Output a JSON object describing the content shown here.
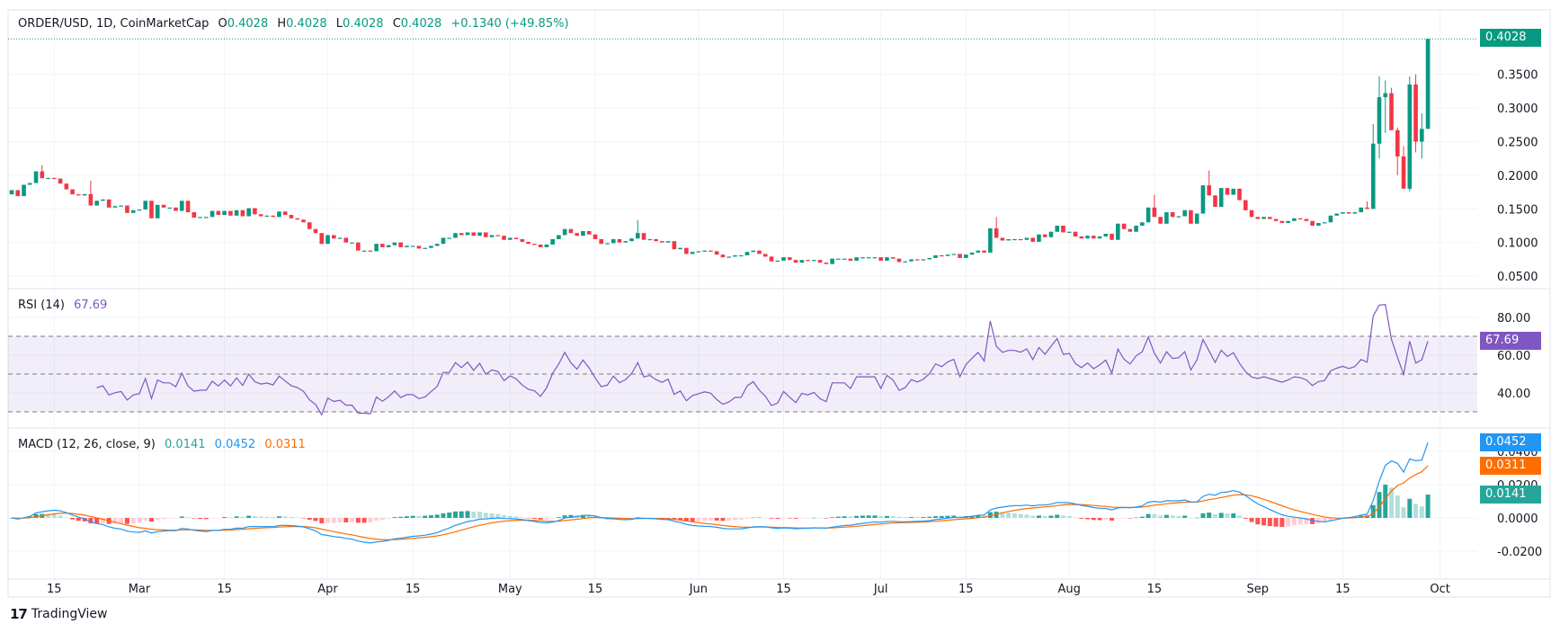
{
  "header": {
    "symbol": "ORDER/USD, 1D, CoinMarketCap",
    "o_label": "O",
    "o": "0.4028",
    "h_label": "H",
    "h": "0.4028",
    "l_label": "L",
    "l": "0.4028",
    "c_label": "C",
    "c": "0.4028",
    "change": "+0.1340 (+49.85%)"
  },
  "colors": {
    "up": "#089981",
    "down": "#F23645",
    "rsi": "#7E57C2",
    "macd": "#2196F3",
    "signal": "#FF6D00",
    "hist_up_strong": "#26A69A",
    "hist_up_weak": "#B2DFDB",
    "hist_down_strong": "#FF5252",
    "hist_down_weak": "#FFCDD2",
    "grid": "#F0F3FA",
    "border": "#E0E3EB"
  },
  "chart_data": [
    {
      "type": "candlestick",
      "title": "ORDER/USD, 1D, CoinMarketCap",
      "first_open": 0.1716,
      "closes": [
        0.1778,
        0.169,
        0.1858,
        0.1884,
        0.2058,
        0.1956,
        0.196,
        0.195,
        0.1876,
        0.179,
        0.1716,
        0.17,
        0.172,
        0.155,
        0.162,
        0.164,
        0.152,
        0.154,
        0.155,
        0.144,
        0.148,
        0.149,
        0.162,
        0.136,
        0.156,
        0.152,
        0.152,
        0.147,
        0.162,
        0.145,
        0.137,
        0.138,
        0.138,
        0.147,
        0.141,
        0.147,
        0.14,
        0.148,
        0.139,
        0.151,
        0.142,
        0.139,
        0.14,
        0.138,
        0.146,
        0.141,
        0.136,
        0.134,
        0.13,
        0.12,
        0.114,
        0.098,
        0.111,
        0.106,
        0.107,
        0.1,
        0.1,
        0.088,
        0.088,
        0.087,
        0.098,
        0.093,
        0.096,
        0.1,
        0.093,
        0.095,
        0.095,
        0.091,
        0.092,
        0.095,
        0.098,
        0.107,
        0.107,
        0.114,
        0.111,
        0.115,
        0.11,
        0.115,
        0.108,
        0.111,
        0.11,
        0.104,
        0.107,
        0.105,
        0.101,
        0.098,
        0.097,
        0.093,
        0.097,
        0.105,
        0.111,
        0.12,
        0.114,
        0.11,
        0.117,
        0.112,
        0.105,
        0.098,
        0.099,
        0.105,
        0.1,
        0.102,
        0.106,
        0.114,
        0.104,
        0.105,
        0.102,
        0.1,
        0.102,
        0.09,
        0.092,
        0.083,
        0.086,
        0.087,
        0.088,
        0.087,
        0.082,
        0.078,
        0.079,
        0.081,
        0.081,
        0.086,
        0.088,
        0.083,
        0.079,
        0.072,
        0.073,
        0.078,
        0.074,
        0.07,
        0.074,
        0.073,
        0.074,
        0.07,
        0.068,
        0.076,
        0.076,
        0.076,
        0.073,
        0.078,
        0.078,
        0.078,
        0.078,
        0.073,
        0.078,
        0.076,
        0.071,
        0.072,
        0.075,
        0.074,
        0.075,
        0.077,
        0.081,
        0.08,
        0.082,
        0.083,
        0.077,
        0.082,
        0.085,
        0.088,
        0.085,
        0.121,
        0.107,
        0.103,
        0.105,
        0.105,
        0.104,
        0.107,
        0.101,
        0.112,
        0.108,
        0.116,
        0.125,
        0.115,
        0.116,
        0.109,
        0.106,
        0.11,
        0.106,
        0.109,
        0.113,
        0.104,
        0.128,
        0.12,
        0.116,
        0.125,
        0.13,
        0.152,
        0.138,
        0.128,
        0.145,
        0.138,
        0.139,
        0.148,
        0.128,
        0.143,
        0.185,
        0.17,
        0.153,
        0.181,
        0.171,
        0.18,
        0.163,
        0.148,
        0.138,
        0.135,
        0.138,
        0.135,
        0.132,
        0.129,
        0.132,
        0.136,
        0.135,
        0.132,
        0.125,
        0.129,
        0.13,
        0.14,
        0.143,
        0.145,
        0.143,
        0.145,
        0.152,
        0.15,
        0.247,
        0.316,
        0.322,
        0.267,
        0.228,
        0.18,
        0.335,
        0.25,
        0.269,
        0.4028
      ],
      "wicks": {
        "5": [
          0.215,
          null
        ],
        "13": [
          0.192,
          null
        ],
        "103": [
          0.133,
          null
        ],
        "162": [
          0.138,
          null
        ],
        "188": [
          0.171,
          null
        ],
        "197": [
          0.207,
          null
        ],
        "223": [
          0.161,
          null
        ],
        "224": [
          0.276,
          null
        ],
        "225": [
          0.347,
          0.225
        ],
        "226": [
          0.341,
          0.263
        ],
        "227": [
          0.33,
          null
        ],
        "228": [
          0.271,
          0.2
        ],
        "229": [
          0.243,
          null
        ],
        "230": [
          0.347,
          0.176
        ],
        "231": [
          0.35,
          0.234
        ],
        "232": [
          0.292,
          0.225
        ]
      },
      "last_price": "0.4028",
      "y_ticks": [
        "0.3500",
        "0.3000",
        "0.2500",
        "0.2000",
        "0.1500",
        "0.1000",
        "0.0500"
      ],
      "x_ticks": [
        "15",
        "Mar",
        "15",
        "Apr",
        "15",
        "May",
        "15",
        "Jun",
        "15",
        "Jul",
        "15",
        "Aug",
        "15",
        "Sep",
        "15",
        "Oct"
      ],
      "grid": true
    },
    {
      "type": "line",
      "title": "RSI (14)",
      "value": "67.69",
      "y_ticks": [
        "80.00",
        "60.00",
        "40.00"
      ],
      "bands": [
        70,
        50,
        30
      ]
    },
    {
      "type": "bar+line",
      "title": "MACD (12, 26, close, 9)",
      "histogram_value": "0.0141",
      "macd_value": "0.0452",
      "signal_value": "0.0311",
      "y_ticks": [
        "0.0400",
        "0.0200",
        "0.0000",
        "-0.0200"
      ]
    }
  ],
  "footer": {
    "brand": "TradingView"
  }
}
